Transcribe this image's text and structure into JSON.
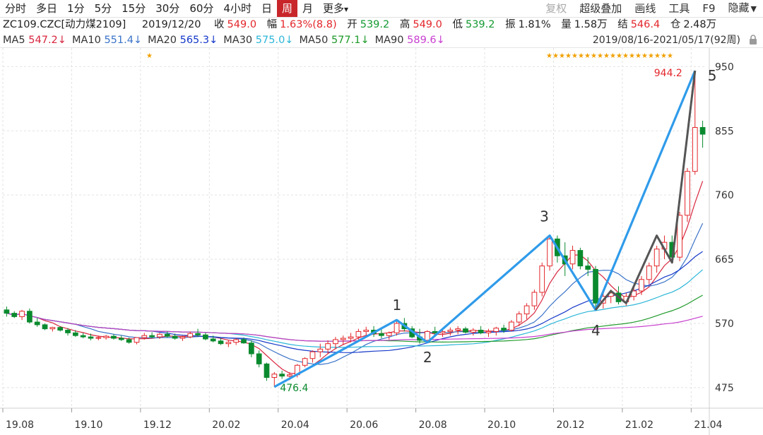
{
  "toolbar": {
    "periods": [
      "分时",
      "多日",
      "1分",
      "5分",
      "15分",
      "30分",
      "60分",
      "4小时",
      "日",
      "周",
      "月",
      "更多"
    ],
    "active_period": "周",
    "right": [
      "复权",
      "超级叠加",
      "画线",
      "工具",
      "F9",
      "隐藏"
    ]
  },
  "info": {
    "symbol": "ZC109.CZC[动力煤2109]",
    "date": "2019/12/20",
    "close_label": "收",
    "close": "549.0",
    "change_label": "幅",
    "change": "1.63%(8.8)",
    "open_label": "开",
    "open": "539.2",
    "high_label": "高",
    "high": "549.0",
    "low_label": "低",
    "low": "539.2",
    "amp_label": "振",
    "amp": "1.81%",
    "vol_label": "量",
    "vol": "1.58万",
    "settle_label": "结",
    "settle": "546.4",
    "oi_label": "仓",
    "oi": "2.48万"
  },
  "ma": [
    {
      "label": "MA5",
      "value": "547.2↓",
      "color": "#d8263f"
    },
    {
      "label": "MA10",
      "value": "551.4↓",
      "color": "#3a73c9"
    },
    {
      "label": "MA20",
      "value": "565.3↓",
      "color": "#1539c9"
    },
    {
      "label": "MA30",
      "value": "575.0↓",
      "color": "#2cb6d8"
    },
    {
      "label": "MA50",
      "value": "577.1↓",
      "color": "#1f9a2a"
    },
    {
      "label": "MA90",
      "value": "589.6↓",
      "color": "#c83fd0"
    }
  ],
  "range": "2019/08/16-2021/05/17(92周)",
  "chart_data": {
    "type": "candlestick",
    "y_ticks": [
      950,
      855,
      760,
      665,
      570,
      475
    ],
    "ylim": [
      455,
      965
    ],
    "x_tick_labels": [
      "19.08",
      "19.10",
      "19.12",
      "20.02",
      "20.04",
      "20.06",
      "20.08",
      "20.10",
      "20.12",
      "21.02",
      "21.04"
    ],
    "x_tick_index": [
      0,
      9,
      18,
      27,
      36,
      45,
      54,
      63,
      72,
      81,
      90
    ],
    "weeks": 92,
    "grid": "dashed vertical and horizontal",
    "ohlc": [
      [
        590,
        595,
        580,
        585
      ],
      [
        585,
        588,
        578,
        580
      ],
      [
        580,
        590,
        575,
        588
      ],
      [
        588,
        592,
        570,
        572
      ],
      [
        572,
        578,
        565,
        568
      ],
      [
        568,
        570,
        560,
        562
      ],
      [
        562,
        565,
        558,
        564
      ],
      [
        564,
        566,
        558,
        560
      ],
      [
        560,
        563,
        552,
        556
      ],
      [
        556,
        560,
        550,
        552
      ],
      [
        552,
        556,
        548,
        550
      ],
      [
        550,
        555,
        545,
        548
      ],
      [
        548,
        552,
        545,
        549
      ],
      [
        549,
        553,
        546,
        551
      ],
      [
        551,
        554,
        546,
        548
      ],
      [
        548,
        552,
        544,
        546
      ],
      [
        546,
        549,
        540,
        542
      ],
      [
        542,
        549,
        539,
        549
      ],
      [
        549,
        556,
        546,
        552
      ],
      [
        552,
        557,
        548,
        550
      ],
      [
        550,
        556,
        547,
        554
      ],
      [
        554,
        558,
        549,
        551
      ],
      [
        551,
        555,
        546,
        548
      ],
      [
        548,
        552,
        544,
        550
      ],
      [
        550,
        558,
        548,
        555
      ],
      [
        555,
        562,
        550,
        553
      ],
      [
        553,
        556,
        545,
        547
      ],
      [
        547,
        552,
        542,
        544
      ],
      [
        544,
        548,
        538,
        540
      ],
      [
        540,
        545,
        535,
        542
      ],
      [
        542,
        548,
        538,
        546
      ],
      [
        546,
        549,
        540,
        541
      ],
      [
        541,
        545,
        520,
        525
      ],
      [
        525,
        530,
        505,
        510
      ],
      [
        510,
        512,
        485,
        490
      ],
      [
        490,
        498,
        476,
        495
      ],
      [
        495,
        500,
        488,
        492
      ],
      [
        492,
        498,
        486,
        494
      ],
      [
        494,
        510,
        490,
        508
      ],
      [
        508,
        520,
        505,
        518
      ],
      [
        518,
        530,
        512,
        528
      ],
      [
        528,
        540,
        520,
        532
      ],
      [
        532,
        545,
        525,
        540
      ],
      [
        540,
        550,
        532,
        546
      ],
      [
        546,
        552,
        538,
        548
      ],
      [
        548,
        556,
        542,
        550
      ],
      [
        550,
        562,
        546,
        558
      ],
      [
        558,
        565,
        552,
        560
      ],
      [
        560,
        566,
        550,
        555
      ],
      [
        555,
        562,
        548,
        552
      ],
      [
        552,
        558,
        546,
        556
      ],
      [
        556,
        575,
        552,
        570
      ],
      [
        570,
        578,
        558,
        562
      ],
      [
        562,
        566,
        548,
        550
      ],
      [
        550,
        562,
        540,
        545
      ],
      [
        545,
        560,
        542,
        558
      ],
      [
        558,
        565,
        552,
        556
      ],
      [
        556,
        562,
        550,
        558
      ],
      [
        558,
        564,
        552,
        560
      ],
      [
        560,
        566,
        554,
        562
      ],
      [
        562,
        565,
        555,
        557
      ],
      [
        557,
        563,
        552,
        560
      ],
      [
        560,
        566,
        554,
        556
      ],
      [
        556,
        562,
        550,
        558
      ],
      [
        558,
        565,
        552,
        563
      ],
      [
        563,
        568,
        556,
        560
      ],
      [
        560,
        575,
        558,
        572
      ],
      [
        572,
        588,
        566,
        584
      ],
      [
        584,
        600,
        576,
        596
      ],
      [
        596,
        620,
        590,
        616
      ],
      [
        616,
        660,
        610,
        655
      ],
      [
        655,
        700,
        648,
        695
      ],
      [
        695,
        700,
        660,
        670
      ],
      [
        670,
        690,
        640,
        658
      ],
      [
        658,
        685,
        650,
        678
      ],
      [
        678,
        682,
        650,
        655
      ],
      [
        655,
        668,
        640,
        650
      ],
      [
        650,
        655,
        590,
        600
      ],
      [
        600,
        615,
        592,
        610
      ],
      [
        610,
        620,
        600,
        615
      ],
      [
        615,
        625,
        598,
        602
      ],
      [
        602,
        615,
        596,
        610
      ],
      [
        610,
        625,
        604,
        618
      ],
      [
        618,
        640,
        612,
        635
      ],
      [
        635,
        660,
        628,
        655
      ],
      [
        655,
        685,
        645,
        680
      ],
      [
        680,
        700,
        665,
        690
      ],
      [
        690,
        700,
        660,
        668
      ],
      [
        668,
        735,
        662,
        730
      ],
      [
        730,
        800,
        720,
        795
      ],
      [
        795,
        944,
        790,
        860
      ],
      [
        860,
        870,
        830,
        850
      ]
    ],
    "annotations": {
      "low_label": "476.4",
      "high_label": "944.2",
      "waves": [
        "1",
        "2",
        "3",
        "4",
        "5"
      ]
    }
  }
}
